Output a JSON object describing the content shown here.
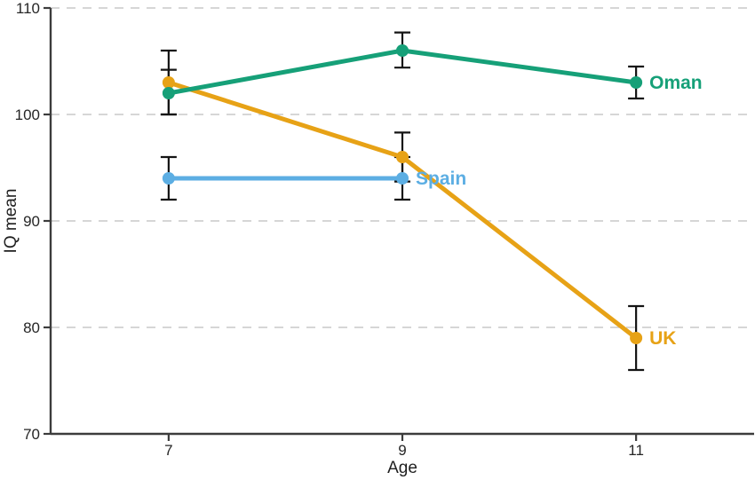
{
  "chart_data": {
    "type": "line",
    "title": "",
    "xlabel": "Age",
    "ylabel": "IQ mean",
    "x_ticks": [
      7,
      9,
      11
    ],
    "y_ticks": [
      70,
      80,
      90,
      100,
      110
    ],
    "xlim": [
      5.99,
      12.01
    ],
    "ylim": [
      70,
      110
    ],
    "grid": "horizontal-dashed",
    "legend_position": "inline-labels-right-of-last-point",
    "error_bars": true,
    "series": [
      {
        "name": "Oman",
        "color": "#16a078",
        "points": [
          {
            "x": 7,
            "y": 102,
            "err_lo": 100.0,
            "err_hi": 104.2
          },
          {
            "x": 9,
            "y": 106,
            "err_lo": 104.4,
            "err_hi": 107.7
          },
          {
            "x": 11,
            "y": 103,
            "err_lo": 101.5,
            "err_hi": 104.5
          }
        ]
      },
      {
        "name": "UK",
        "color": "#e7a216",
        "points": [
          {
            "x": 7,
            "y": 103,
            "err_lo": 100.0,
            "err_hi": 106.0
          },
          {
            "x": 9,
            "y": 96,
            "err_lo": 93.7,
            "err_hi": 98.3
          },
          {
            "x": 11,
            "y": 79,
            "err_lo": 76.0,
            "err_hi": 82.0
          }
        ]
      },
      {
        "name": "Spain",
        "color": "#5caee3",
        "points": [
          {
            "x": 7,
            "y": 94,
            "err_lo": 92.0,
            "err_hi": 96.0
          },
          {
            "x": 9,
            "y": 94,
            "err_lo": 92.0,
            "err_hi": 96.0
          }
        ]
      }
    ],
    "colors": {
      "axis": "#3c3c3c",
      "tick_text": "#262626",
      "axis_title_text": "#1f1f1f",
      "grid": "#d6d6d6",
      "error_bar": "#141414",
      "background": "#ffffff"
    }
  }
}
